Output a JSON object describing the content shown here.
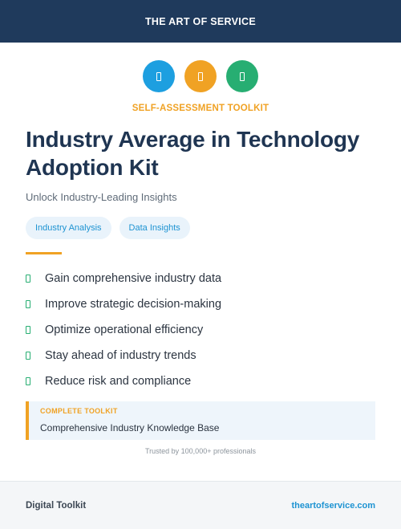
{
  "header": {
    "brand": "THE ART OF SERVICE"
  },
  "icons": [
    {
      "name": "blue-badge-icon",
      "color": "#1d9fe0"
    },
    {
      "name": "orange-badge-icon",
      "color": "#f0a224"
    },
    {
      "name": "green-badge-icon",
      "color": "#27ae72"
    }
  ],
  "hero": {
    "kicker": "SELF-ASSESSMENT TOOLKIT",
    "title": "Industry Average in Technology Adoption Kit",
    "subtitle": "Unlock Industry-Leading Insights"
  },
  "tags": [
    "Industry Analysis",
    "Data Insights"
  ],
  "features": [
    "Gain comprehensive industry data",
    "Improve strategic decision-making",
    "Optimize operational efficiency",
    "Stay ahead of industry trends",
    "Reduce risk and compliance"
  ],
  "callout": {
    "label": "COMPLETE TOOLKIT",
    "text": "Comprehensive Industry Knowledge Base"
  },
  "trusted": "Trusted by 100,000+ professionals",
  "footer": {
    "left": "Digital Toolkit",
    "right": "theartofservice.com"
  },
  "colors": {
    "navy": "#1f3a5c",
    "accent_orange": "#f0a224",
    "accent_blue": "#1d93d2",
    "accent_green": "#27ae72"
  }
}
